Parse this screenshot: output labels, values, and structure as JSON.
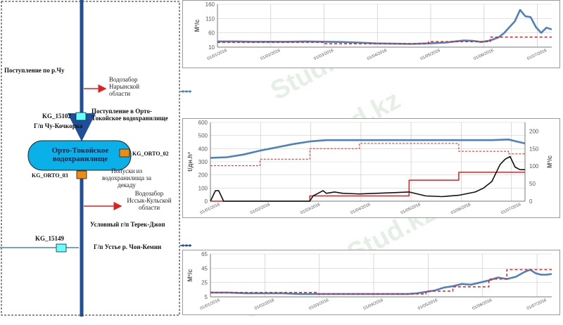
{
  "scheme": {
    "inflow_chu": "Поступление по р.Чу",
    "intake_naryn": "Водозабор Нарынской области",
    "gauge_kg15102": "KG_15102",
    "gauge_kochkorka": "Г/п Чу-Кочкорка",
    "inflow_reservoir": "Поступление в Орто-Токойское водохранилище",
    "reservoir_name": "Орто-Токойское водохранилище",
    "kg_orto_02": "KG_ORTO_02",
    "kg_orto_03": "KG_ORTO_03",
    "releases": "Попуски из водохранилища за декаду",
    "intake_issyk": "Водозабор Иссык-Кульской области",
    "gauge_terek": "Условный г/п Терек-Джоп",
    "gauge_kg15149": "KG_15149",
    "gauge_chon_kemin": "Г/п Устье р. Чон-Кемин"
  },
  "colors": {
    "blue": "#4f81bd",
    "red": "#e02020",
    "black": "#111111",
    "axis": "#595959",
    "grid": "#d0d0d0"
  },
  "watermark": "Stud.kz - Stud.kz",
  "chart_data": [
    {
      "type": "line",
      "ylabel": "M³/c",
      "ylim": [
        10,
        160
      ],
      "yticks": [
        "10",
        "60",
        "110",
        "160"
      ],
      "xticks": [
        "01/01/2016",
        "01/02/2016",
        "01/03/2016",
        "01/04/2016",
        "01/05/2016",
        "01/06/2016",
        "01/07/2016"
      ],
      "x_range": [
        0,
        190
      ],
      "series": [
        {
          "role": "blue",
          "x": [
            0,
            10,
            20,
            30,
            40,
            50,
            60,
            70,
            80,
            90,
            100,
            110,
            115,
            120,
            130,
            135,
            140,
            145,
            150,
            155,
            160,
            163,
            166,
            169,
            172,
            175,
            178,
            181,
            184,
            187,
            190
          ],
          "y": [
            30,
            30,
            29,
            29,
            29,
            30,
            29,
            28,
            26,
            23,
            22,
            21,
            22,
            23,
            26,
            30,
            33,
            32,
            28,
            33,
            45,
            60,
            80,
            100,
            140,
            118,
            115,
            80,
            60,
            78,
            72
          ]
        },
        {
          "role": "red",
          "x": [
            0,
            60,
            60,
            120,
            120,
            155,
            155,
            190
          ],
          "y": [
            27,
            27,
            22,
            22,
            29,
            29,
            45,
            45
          ]
        }
      ]
    },
    {
      "type": "line",
      "ylabel": "t/дн.h³",
      "y2label": "M³/c",
      "ylim": [
        0,
        600
      ],
      "y2lim": [
        0,
        225
      ],
      "yticks": [
        "0",
        "100",
        "200",
        "300",
        "400",
        "500",
        "600"
      ],
      "y2ticks": [
        "0",
        "50",
        "100",
        "150",
        "200"
      ],
      "xticks": [
        "01/01/2016",
        "01/02/2016",
        "01/03/2016",
        "01/04/2016",
        "01/05/2016",
        "01/06/2016",
        "01/07/2016"
      ],
      "x_range": [
        0,
        190
      ],
      "series": [
        {
          "role": "blue",
          "x": [
            0,
            10,
            20,
            30,
            40,
            50,
            60,
            70,
            80,
            90,
            100,
            110,
            120,
            130,
            140,
            150,
            160,
            170,
            180,
            185,
            190
          ],
          "y": [
            330,
            335,
            355,
            385,
            410,
            435,
            455,
            465,
            465,
            465,
            465,
            465,
            465,
            465,
            465,
            465,
            465,
            465,
            470,
            455,
            440
          ]
        },
        {
          "role": "red-dashed",
          "x": [
            0,
            30,
            30,
            60,
            60,
            90,
            90,
            150,
            150,
            180,
            180,
            190
          ],
          "y": [
            270,
            270,
            320,
            320,
            400,
            400,
            440,
            440,
            380,
            380,
            360,
            360
          ]
        },
        {
          "role": "red",
          "x": [
            0,
            60,
            60,
            120,
            120,
            150,
            150,
            190
          ],
          "y": [
            0,
            0,
            40,
            40,
            160,
            160,
            220,
            220
          ]
        },
        {
          "role": "black",
          "x": [
            0,
            3,
            5,
            8,
            10,
            60,
            62,
            65,
            68,
            70,
            75,
            80,
            90,
            100,
            110,
            120,
            130,
            140,
            150,
            160,
            165,
            170,
            175,
            178,
            181,
            184,
            187,
            190
          ],
          "y": [
            0,
            80,
            80,
            0,
            0,
            0,
            40,
            60,
            80,
            60,
            70,
            60,
            55,
            60,
            65,
            70,
            40,
            35,
            45,
            70,
            100,
            150,
            280,
            320,
            340,
            260,
            240,
            240
          ]
        }
      ]
    },
    {
      "type": "line",
      "ylabel": "M³/c",
      "ylim": [
        5,
        65
      ],
      "yticks": [
        "5",
        "25",
        "45",
        "65"
      ],
      "xticks": [
        "01/01/2016",
        "01/02/2016",
        "01/03/2016",
        "01/04/2016",
        "01/05/2016",
        "01/06/2016",
        "01/07/2016"
      ],
      "x_range": [
        0,
        190
      ],
      "series": [
        {
          "role": "blue",
          "x": [
            0,
            10,
            20,
            30,
            40,
            50,
            60,
            70,
            80,
            90,
            100,
            110,
            115,
            120,
            125,
            130,
            135,
            140,
            145,
            150,
            155,
            160,
            165,
            170,
            175,
            178,
            181,
            184,
            187,
            190
          ],
          "y": [
            11,
            11,
            10,
            10,
            10,
            9,
            9,
            9,
            9,
            9,
            9,
            9,
            10,
            12,
            14,
            18,
            20,
            23,
            22,
            25,
            28,
            32,
            30,
            33,
            40,
            43,
            38,
            36,
            36,
            37
          ]
        },
        {
          "role": "red",
          "x": [
            0,
            60,
            60,
            120,
            120,
            135,
            135,
            155,
            155,
            165,
            165,
            190
          ],
          "y": [
            11,
            11,
            9,
            9,
            13,
            13,
            19,
            19,
            30,
            30,
            43,
            43
          ]
        }
      ]
    }
  ]
}
